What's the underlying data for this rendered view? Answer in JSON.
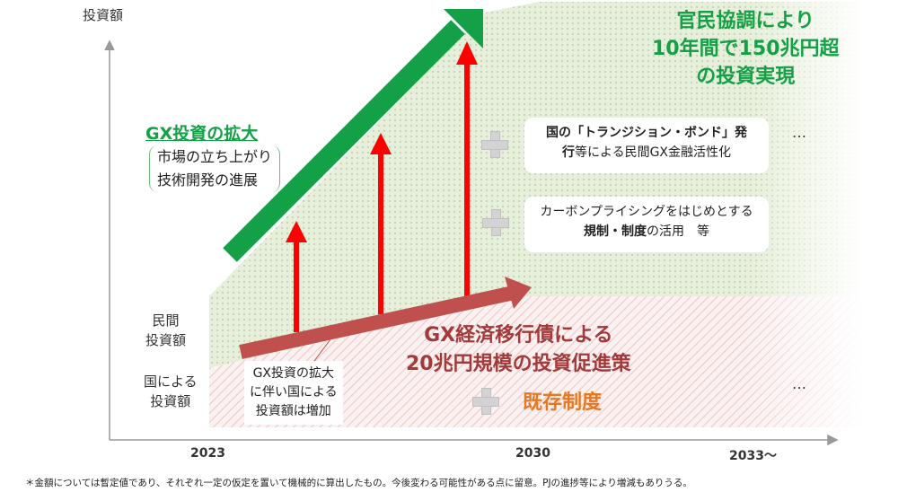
{
  "axis": {
    "y_label": "投資額",
    "x_ticks": [
      "2023",
      "2030",
      "2033～"
    ]
  },
  "row_labels": {
    "private": [
      "民間",
      "投資額"
    ],
    "government": [
      "国による",
      "投資額"
    ]
  },
  "headline": [
    "官民協調により",
    "10年間で150兆円超",
    "の投資実現"
  ],
  "gx_expansion": {
    "title": "GX投資の拡大",
    "items": [
      "市場の立ち上がり",
      "技術開発の進展"
    ]
  },
  "boxes": {
    "bond": {
      "bold1": "国の「トランジション・ボンド」発",
      "bold2": "行",
      "rest": "等による民間GX金融活性化"
    },
    "carbon": {
      "line1": "カーボンプライシングをはじめとする",
      "bold": "規制・制度",
      "rest": "の活用　等"
    }
  },
  "bond_policy": [
    "GX経済移行債による",
    "20兆円規模の投資促進策"
  ],
  "existing": "既存制度",
  "note": [
    "GX投資の拡大",
    "に伴い国による",
    "投資額は増加"
  ],
  "ellipsis": "…",
  "footnote": "＊金額については暫定値であり、それぞれ一定の仮定を置いて機械的に算出したもの。今後変わる可能性がある点に留意。PJの進捗等により増減もありうる。",
  "colors": {
    "green": "#14a046",
    "red": "#ff0000",
    "maroon": "#c0504d",
    "orange": "#e87722",
    "gray": "#d3d3d3"
  }
}
